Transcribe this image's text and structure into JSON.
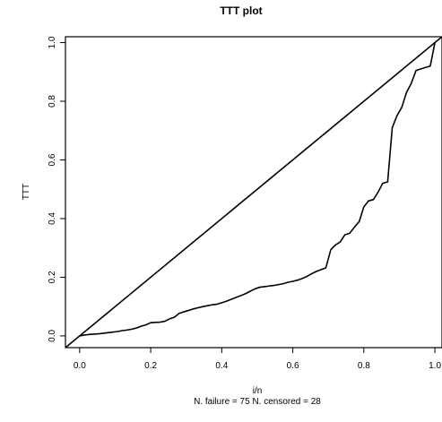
{
  "chart_data": {
    "type": "line",
    "title": "TTT plot",
    "xlabel": "i/n",
    "ylabel": "TTT",
    "subtitle": "N. failure = 75 N. censored = 28",
    "xlim": [
      -0.04,
      1.02
    ],
    "ylim": [
      -0.04,
      1.02
    ],
    "x_ticks": [
      0.0,
      0.2,
      0.4,
      0.6,
      0.8,
      1.0
    ],
    "x_tick_labels": [
      "0.0",
      "0.2",
      "0.4",
      "0.6",
      "0.8",
      "1.0"
    ],
    "y_ticks": [
      0.0,
      0.2,
      0.4,
      0.6,
      0.8,
      1.0
    ],
    "y_tick_labels": [
      "0.0",
      "0.2",
      "0.4",
      "0.6",
      "0.8",
      "1.0"
    ],
    "grid": false,
    "series": [
      {
        "role": "reference diagonal",
        "x": [
          -0.04,
          1.02
        ],
        "y": [
          -0.04,
          1.02
        ]
      },
      {
        "role": "TTT curve",
        "x": [
          0.0,
          0.013,
          0.027,
          0.04,
          0.053,
          0.067,
          0.08,
          0.093,
          0.107,
          0.12,
          0.133,
          0.147,
          0.16,
          0.173,
          0.187,
          0.2,
          0.213,
          0.227,
          0.24,
          0.253,
          0.267,
          0.28,
          0.293,
          0.307,
          0.32,
          0.333,
          0.347,
          0.36,
          0.373,
          0.387,
          0.4,
          0.413,
          0.427,
          0.44,
          0.453,
          0.467,
          0.48,
          0.493,
          0.507,
          0.52,
          0.533,
          0.547,
          0.56,
          0.573,
          0.587,
          0.6,
          0.613,
          0.627,
          0.64,
          0.653,
          0.667,
          0.68,
          0.693,
          0.707,
          0.72,
          0.733,
          0.747,
          0.76,
          0.773,
          0.787,
          0.8,
          0.813,
          0.827,
          0.84,
          0.853,
          0.867,
          0.88,
          0.893,
          0.907,
          0.92,
          0.933,
          0.947,
          0.96,
          0.973,
          0.987,
          1.0
        ],
        "y": [
          0.0,
          0.003,
          0.005,
          0.006,
          0.007,
          0.009,
          0.011,
          0.013,
          0.015,
          0.018,
          0.02,
          0.023,
          0.027,
          0.033,
          0.038,
          0.045,
          0.046,
          0.047,
          0.05,
          0.058,
          0.064,
          0.077,
          0.082,
          0.087,
          0.092,
          0.096,
          0.1,
          0.103,
          0.106,
          0.108,
          0.113,
          0.118,
          0.125,
          0.131,
          0.137,
          0.144,
          0.152,
          0.16,
          0.166,
          0.168,
          0.17,
          0.172,
          0.175,
          0.178,
          0.183,
          0.186,
          0.19,
          0.196,
          0.203,
          0.212,
          0.22,
          0.226,
          0.232,
          0.294,
          0.31,
          0.32,
          0.345,
          0.35,
          0.37,
          0.39,
          0.44,
          0.46,
          0.465,
          0.49,
          0.52,
          0.525,
          0.71,
          0.75,
          0.78,
          0.83,
          0.86,
          0.905,
          0.91,
          0.915,
          0.92,
          1.0
        ]
      }
    ]
  }
}
